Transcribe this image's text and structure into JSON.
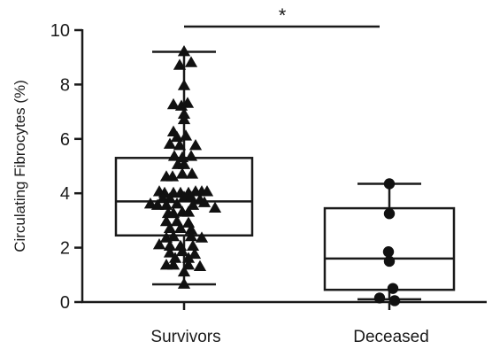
{
  "chart_data": {
    "type": "box",
    "ylabel": "Circulating Fibrocytes (%)",
    "ylim": [
      0,
      10
    ],
    "yticks": [
      "0",
      "2",
      "4",
      "6",
      "8",
      "10"
    ],
    "categories": [
      "Survivors",
      "Deceased"
    ],
    "significance": {
      "label": "*",
      "between": [
        "Survivors",
        "Deceased"
      ]
    },
    "series": [
      {
        "name": "Survivors",
        "marker": "triangle",
        "box": {
          "min": 0.65,
          "q1": 2.45,
          "median": 3.7,
          "q3": 5.3,
          "max": 9.2
        },
        "points": [
          [
            0.0,
            9.2
          ],
          [
            0.08,
            8.8
          ],
          [
            -0.05,
            8.7
          ],
          [
            0.0,
            7.95
          ],
          [
            -0.12,
            7.25
          ],
          [
            -0.03,
            7.2
          ],
          [
            0.04,
            7.3
          ],
          [
            0.0,
            6.9
          ],
          [
            0.0,
            6.7
          ],
          [
            -0.12,
            6.25
          ],
          [
            -0.08,
            6.05
          ],
          [
            0.02,
            6.1
          ],
          [
            -0.16,
            5.8
          ],
          [
            -0.05,
            5.75
          ],
          [
            0.13,
            5.75
          ],
          [
            -0.11,
            5.35
          ],
          [
            -0.02,
            5.3
          ],
          [
            0.08,
            5.35
          ],
          [
            -0.07,
            5.05
          ],
          [
            0.0,
            5.05
          ],
          [
            -0.2,
            4.6
          ],
          [
            -0.13,
            4.6
          ],
          [
            -0.02,
            4.7
          ],
          [
            0.09,
            4.7
          ],
          [
            -0.28,
            4.05
          ],
          [
            -0.22,
            4.0
          ],
          [
            -0.12,
            4.0
          ],
          [
            -0.04,
            4.0
          ],
          [
            0.05,
            4.0
          ],
          [
            0.13,
            4.05
          ],
          [
            0.2,
            4.05
          ],
          [
            0.26,
            4.05
          ],
          [
            -0.24,
            3.8
          ],
          [
            -0.16,
            3.8
          ],
          [
            0.0,
            3.85
          ],
          [
            0.08,
            3.85
          ],
          [
            0.18,
            3.75
          ],
          [
            -0.38,
            3.6
          ],
          [
            -0.3,
            3.55
          ],
          [
            -0.2,
            3.55
          ],
          [
            -0.08,
            3.6
          ],
          [
            0.1,
            3.55
          ],
          [
            0.23,
            3.65
          ],
          [
            0.35,
            3.45
          ],
          [
            -0.18,
            3.25
          ],
          [
            -0.12,
            3.25
          ],
          [
            -0.02,
            3.3
          ],
          [
            0.05,
            3.3
          ],
          [
            -0.2,
            2.95
          ],
          [
            -0.08,
            2.95
          ],
          [
            0.05,
            2.9
          ],
          [
            -0.16,
            2.7
          ],
          [
            -0.04,
            2.7
          ],
          [
            0.08,
            2.65
          ],
          [
            -0.2,
            2.35
          ],
          [
            -0.12,
            2.4
          ],
          [
            0.08,
            2.4
          ],
          [
            0.2,
            2.35
          ],
          [
            -0.28,
            2.1
          ],
          [
            -0.16,
            2.05
          ],
          [
            -0.04,
            2.05
          ],
          [
            0.1,
            2.05
          ],
          [
            -0.16,
            1.8
          ],
          [
            -0.02,
            1.85
          ],
          [
            0.12,
            1.75
          ],
          [
            -0.1,
            1.6
          ],
          [
            0.05,
            1.6
          ],
          [
            -0.2,
            1.35
          ],
          [
            -0.12,
            1.35
          ],
          [
            0.05,
            1.35
          ],
          [
            0.18,
            1.3
          ],
          [
            0.0,
            1.1
          ],
          [
            0.0,
            0.65
          ]
        ]
      },
      {
        "name": "Deceased",
        "marker": "circle",
        "box": {
          "min": 0.1,
          "q1": 0.45,
          "median": 1.6,
          "q3": 3.45,
          "max": 4.35
        },
        "points": [
          [
            0.0,
            4.35
          ],
          [
            0.0,
            3.25
          ],
          [
            -0.01,
            1.85
          ],
          [
            0.0,
            1.5
          ],
          [
            0.04,
            0.5
          ],
          [
            -0.11,
            0.15
          ],
          [
            0.06,
            0.05
          ]
        ]
      }
    ]
  }
}
